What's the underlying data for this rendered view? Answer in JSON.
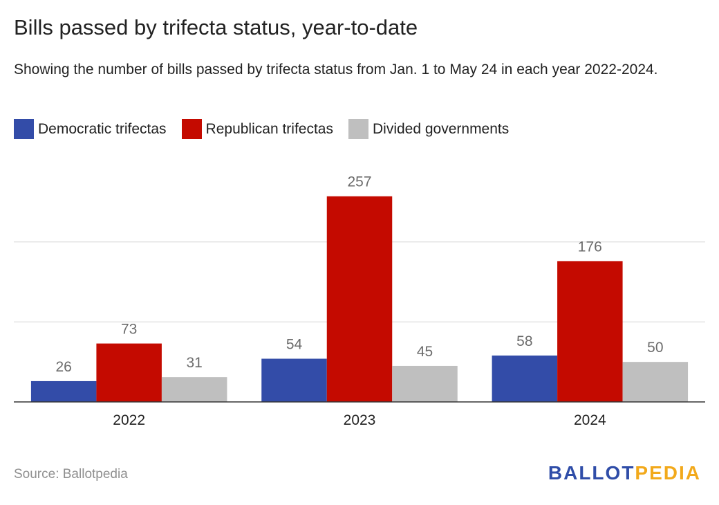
{
  "chart_data": {
    "type": "bar",
    "title": "Bills passed by trifecta status, year-to-date",
    "subtitle": "Showing the number of bills passed by trifecta status from Jan. 1 to May 24 in each year 2022-2024.",
    "categories": [
      "2022",
      "2023",
      "2024"
    ],
    "series": [
      {
        "name": "Democratic trifectas",
        "color": "#334ca8",
        "values": [
          26,
          54,
          58
        ]
      },
      {
        "name": "Republican trifectas",
        "color": "#c40a00",
        "values": [
          73,
          257,
          176
        ]
      },
      {
        "name": "Divided governments",
        "color": "#bfbfbf",
        "values": [
          31,
          45,
          50
        ]
      }
    ],
    "ylim": [
      0,
      300
    ],
    "gridlines": [
      100,
      200
    ],
    "grid": true,
    "legend_position": "top-left",
    "data_labels": true,
    "xlabel": "",
    "ylabel": ""
  },
  "footer": {
    "source": "Source: Ballotpedia",
    "logo_part1": "BALLOT",
    "logo_part2": "PEDIA"
  }
}
